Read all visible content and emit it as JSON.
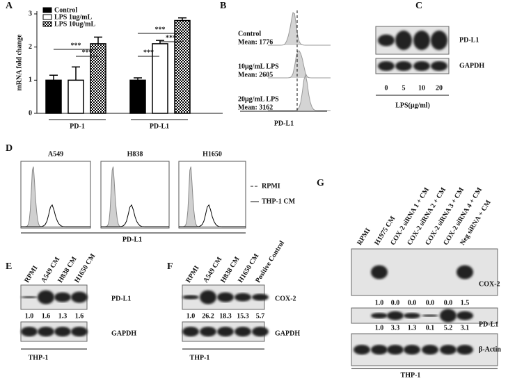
{
  "chart_data": {
    "type": "bar",
    "panel_label": "A",
    "ylabel": "mRNA fold change",
    "categories": [
      "PD-1",
      "PD-L1"
    ],
    "series": [
      {
        "name": "Control",
        "color": "#000000",
        "values": [
          1.0,
          1.0
        ],
        "errors": [
          0.15,
          0.07
        ]
      },
      {
        "name": "LPS 1ug/mL",
        "color": "#ffffff",
        "values": [
          1.0,
          2.1
        ],
        "errors": [
          0.4,
          0.1
        ]
      },
      {
        "name": "LPS 10ug/mL",
        "color": "#000000",
        "pattern": "checker",
        "values": [
          2.1,
          2.8
        ],
        "errors": [
          0.2,
          0.08
        ]
      }
    ],
    "ylim": [
      0,
      3
    ],
    "yticks": [
      0,
      1,
      2,
      3
    ],
    "significance": [
      "***",
      "***",
      "***",
      "***",
      "***"
    ]
  },
  "panels": {
    "B": {
      "label": "B",
      "rows": [
        {
          "name": "Control",
          "mean": "Mean: 1776"
        },
        {
          "name": "10μg/mL LPS",
          "mean": "Mean: 2605"
        },
        {
          "name": "20μg/mL LPS",
          "mean": "Mean: 3162"
        }
      ],
      "xlabel": "PD-L1"
    },
    "C": {
      "label": "C",
      "bands": [
        "PD-L1",
        "GAPDH"
      ],
      "lanes": [
        "0",
        "5",
        "10",
        "20"
      ],
      "xlabel": "LPS(μg/ml)"
    },
    "D": {
      "label": "D",
      "samples": [
        "A549",
        "H838",
        "H1650"
      ],
      "legend": [
        "RPMI",
        "THP-1 CM"
      ],
      "xlabel": "PD-L1"
    },
    "E": {
      "label": "E",
      "lanes": [
        "RPMI",
        "A549 CM",
        "H838 CM",
        "H1650 CM"
      ],
      "bands": [
        "PD-L1",
        "GAPDH"
      ],
      "quant": [
        "1.0",
        "1.6",
        "1.3",
        "1.6"
      ],
      "cells": "THP-1"
    },
    "F": {
      "label": "F",
      "lanes": [
        "RPMI",
        "A549 CM",
        "H838 CM",
        "H1650 CM",
        "Positive Control"
      ],
      "bands": [
        "COX-2",
        "GAPDH"
      ],
      "quant": [
        "1.0",
        "26.2",
        "18.3",
        "15.3",
        "5.7"
      ],
      "cells": "THP-1"
    },
    "G": {
      "label": "G",
      "lanes": [
        "RPMI",
        "H1975 CM",
        "COX-2 siRNA 1 + CM",
        "COX-2 siRNA 2 + CM",
        "COX-2 siRNA 3 + CM",
        "COX-2 siRNA 4 + CM",
        "Neg siRNA + CM"
      ],
      "bands": [
        "COX-2",
        "PD-L1",
        "β-Actin"
      ],
      "quant": [
        [
          "1.0",
          "0.0",
          "0.0",
          "0.0",
          "0.0",
          "1.5"
        ],
        [
          "1.0",
          "3.3",
          "1.3",
          "0.1",
          "5.2",
          "3.1"
        ]
      ],
      "cells": "THP-1"
    }
  }
}
